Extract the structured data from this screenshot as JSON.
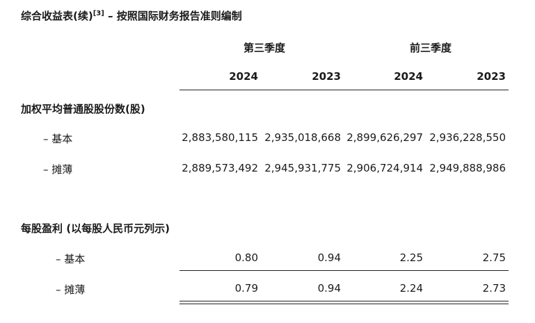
{
  "title": {
    "text": "综合收益表(续)",
    "note": "[3]",
    "suffix": " – 按照国际财务报告准则编制"
  },
  "header": {
    "periods": [
      "第三季度",
      "前三季度"
    ],
    "years": [
      "2024",
      "2023",
      "2024",
      "2023"
    ]
  },
  "shares": {
    "heading": "加权平均普通股股份数(股)",
    "rows": [
      {
        "label": "– 基本",
        "values": [
          "2,883,580,115",
          "2,935,018,668",
          "2,899,626,297",
          "2,936,228,550"
        ]
      },
      {
        "label": "– 摊薄",
        "values": [
          "2,889,573,492",
          "2,945,931,775",
          "2,906,724,914",
          "2,949,888,986"
        ]
      }
    ]
  },
  "eps": {
    "heading": "每股盈利 (以每股人民币元列示)",
    "rows": [
      {
        "label": "– 基本",
        "values": [
          "0.80",
          "0.94",
          "2.25",
          "2.75"
        ]
      },
      {
        "label": "– 摊薄",
        "values": [
          "0.79",
          "0.94",
          "2.24",
          "2.73"
        ]
      }
    ]
  }
}
